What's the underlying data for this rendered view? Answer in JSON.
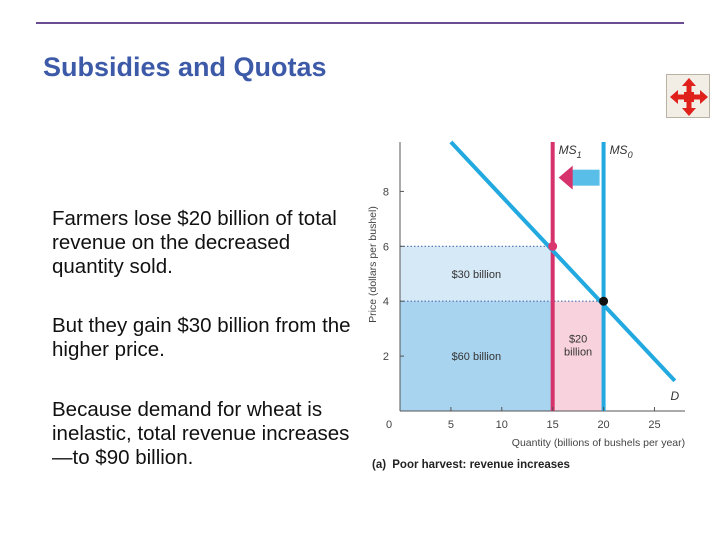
{
  "slide": {
    "title": "Subsidies and Quotas",
    "paragraphs": [
      "Farmers lose $20 billion of total revenue on the decreased quantity sold.",
      "But they gain $30 billion from the higher price.",
      "Because demand for wheat is inelastic, total revenue increases—to $90 billion."
    ],
    "nav_icon": "move-arrows-icon"
  },
  "chart_data": {
    "type": "line",
    "title": "",
    "caption_tag": "(a)",
    "caption_text": "Poor harvest: revenue increases",
    "xlabel": "Quantity (billions of bushels per year)",
    "ylabel": "Price (dollars per bushel)",
    "xlim": [
      0,
      28
    ],
    "ylim": [
      0,
      9.8
    ],
    "x_ticks": [
      5,
      10,
      15,
      20,
      25
    ],
    "y_ticks": [
      2,
      4,
      6,
      8
    ],
    "origin_label": "0",
    "grid": false,
    "series": [
      {
        "name": "D",
        "x": [
          5,
          27
        ],
        "y": [
          9.8,
          1.1
        ]
      },
      {
        "name": "MS0",
        "label_main": "MS",
        "label_sub": "0",
        "x": [
          20,
          20
        ],
        "y": [
          0,
          9.8
        ]
      },
      {
        "name": "MS1",
        "label_main": "MS",
        "label_sub": "1",
        "x": [
          15,
          15
        ],
        "y": [
          0,
          9.8
        ]
      }
    ],
    "points": [
      {
        "x": 15,
        "y": 6,
        "color": "#d9376e"
      },
      {
        "x": 20,
        "y": 4,
        "color": "#111111"
      }
    ],
    "areas": [
      {
        "label": "$30 billion",
        "x": [
          0,
          15
        ],
        "y": [
          4,
          6
        ],
        "color": "#d6e9f7"
      },
      {
        "label": "$60 billion",
        "x": [
          0,
          15
        ],
        "y": [
          0,
          4
        ],
        "color": "#a9d4ef"
      },
      {
        "label_lines": [
          "$20",
          "billion"
        ],
        "x": [
          15,
          20
        ],
        "y": [
          0,
          4
        ],
        "color": "#f8d3de"
      }
    ],
    "colors": {
      "demand": "#21a9e0",
      "supply_new": "#d6336c",
      "supply_old": "#21a9e0",
      "arrow": "#d6336c",
      "guide": "#4a6fb3"
    }
  }
}
